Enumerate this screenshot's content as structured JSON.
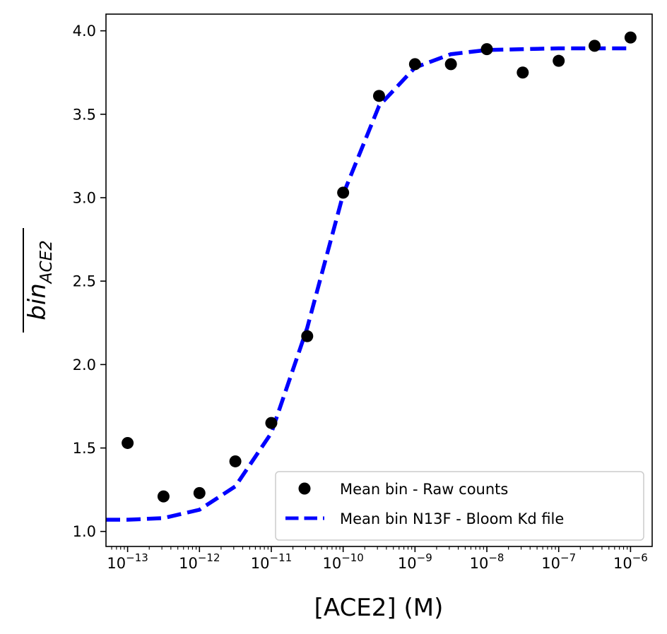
{
  "chart_data": {
    "type": "scatter",
    "xscale": "log",
    "xlim": [
      5e-14,
      2e-06
    ],
    "ylim": [
      0.91,
      4.1
    ],
    "xlabel": "[ACE2] (M)",
    "ylabel": {
      "base": "bin",
      "subscript": "ACE2",
      "overline": true
    },
    "x_ticks": [
      {
        "value": 1e-13,
        "mantissa": "10",
        "exponent": "−13"
      },
      {
        "value": 1e-12,
        "mantissa": "10",
        "exponent": "−12"
      },
      {
        "value": 1e-11,
        "mantissa": "10",
        "exponent": "−11"
      },
      {
        "value": 1e-10,
        "mantissa": "10",
        "exponent": "−10"
      },
      {
        "value": 1e-09,
        "mantissa": "10",
        "exponent": "−9"
      },
      {
        "value": 1e-08,
        "mantissa": "10",
        "exponent": "−8"
      },
      {
        "value": 1e-07,
        "mantissa": "10",
        "exponent": "−7"
      },
      {
        "value": 1e-06,
        "mantissa": "10",
        "exponent": "−6"
      }
    ],
    "y_ticks": [
      {
        "value": 1.0,
        "label": "1.0"
      },
      {
        "value": 1.5,
        "label": "1.5"
      },
      {
        "value": 2.0,
        "label": "2.0"
      },
      {
        "value": 2.5,
        "label": "2.5"
      },
      {
        "value": 3.0,
        "label": "3.0"
      },
      {
        "value": 3.5,
        "label": "3.5"
      },
      {
        "value": 4.0,
        "label": "4.0"
      }
    ],
    "grid": false,
    "legend_position": "lower-right",
    "series": [
      {
        "name": "Mean bin - Raw counts",
        "kind": "points",
        "color": "#000000",
        "x": [
          1e-13,
          3.16e-13,
          1e-12,
          3.16e-12,
          1e-11,
          3.16e-11,
          1e-10,
          3.16e-10,
          1e-09,
          3.16e-09,
          1e-08,
          3.16e-08,
          1e-07,
          3.16e-07,
          1e-06
        ],
        "y": [
          1.53,
          1.21,
          1.23,
          1.42,
          1.65,
          2.17,
          3.03,
          3.61,
          3.8,
          3.8,
          3.89,
          3.75,
          3.82,
          3.91,
          3.96
        ]
      },
      {
        "name": "Mean bin N13F - Bloom Kd file",
        "kind": "dashed-line",
        "color": "#0000ff",
        "x": [
          5e-14,
          1e-13,
          3.16e-13,
          1e-12,
          3.16e-12,
          1e-11,
          3.16e-11,
          1e-10,
          3.16e-10,
          1e-09,
          3.16e-09,
          1e-08,
          3.16e-08,
          1e-07,
          3.16e-07,
          1e-06
        ],
        "y": [
          1.07,
          1.07,
          1.08,
          1.13,
          1.27,
          1.59,
          2.22,
          3.02,
          3.55,
          3.78,
          3.86,
          3.885,
          3.89,
          3.895,
          3.895,
          3.895
        ]
      }
    ]
  }
}
